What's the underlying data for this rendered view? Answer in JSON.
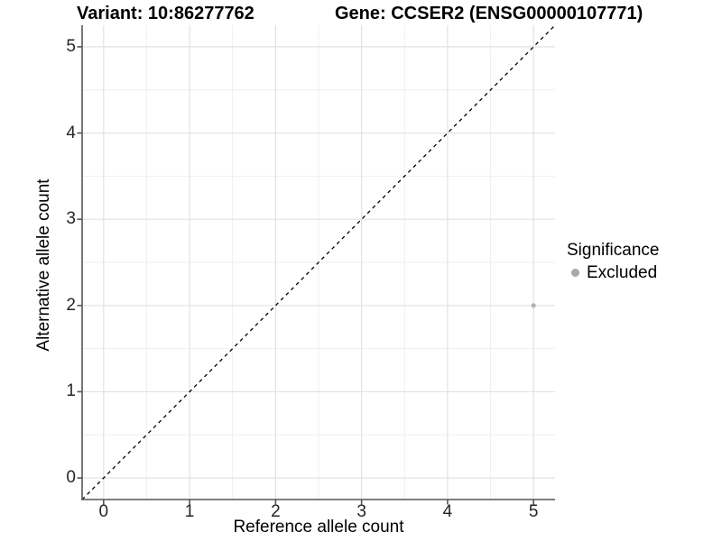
{
  "header": {
    "variant_title": "Variant: 10:86277762",
    "gene_title": "Gene: CCSER2 (ENSG00000107771)"
  },
  "chart_data": {
    "type": "scatter",
    "xlabel": "Reference allele count",
    "ylabel": "Alternative allele count",
    "x_ticks": [
      0,
      1,
      2,
      3,
      4,
      5
    ],
    "y_ticks": [
      0,
      1,
      2,
      3,
      4,
      5
    ],
    "x_tick_labels": [
      "0",
      "1",
      "2",
      "3",
      "4",
      "5"
    ],
    "y_tick_labels": [
      "0",
      "1",
      "2",
      "3",
      "4",
      "5"
    ],
    "xlim": [
      -0.25,
      5.25
    ],
    "ylim": [
      -0.25,
      5.25
    ],
    "grid": "major-and-minor",
    "abline": {
      "slope": 1,
      "intercept": 0,
      "style": "dashed",
      "color": "#000000"
    },
    "points": [
      {
        "x": 5,
        "y": 2,
        "series": "Excluded",
        "color": "#b3b3b3",
        "radius": 2.6
      }
    ],
    "legend": {
      "title": "Significance",
      "position": "right",
      "entries": [
        {
          "label": "Excluded",
          "color": "#a8a8a8"
        }
      ]
    },
    "colors": {
      "background": "#ffffff",
      "grid_major": "#e2e2e2",
      "grid_minor": "#efefef",
      "axis_line": "#555555",
      "tick_text": "#262626"
    }
  }
}
